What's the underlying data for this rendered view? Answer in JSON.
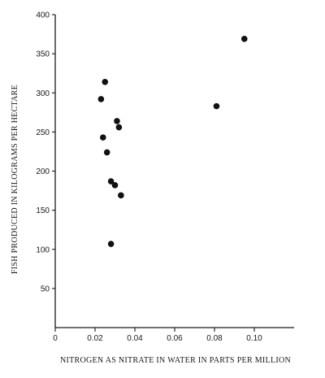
{
  "chart_data": {
    "type": "scatter",
    "title": "",
    "xlabel": "NITROGEN AS NITRATE IN WATER IN PARTS PER MILLION",
    "ylabel": "FISH PRODUCED IN KILOGRAMS PER HECTARE",
    "xlim": [
      0,
      0.12
    ],
    "ylim": [
      0,
      400
    ],
    "xticks": [
      0,
      0.02,
      0.04,
      0.06,
      0.08,
      0.1
    ],
    "xtick_labels": [
      "0",
      "0.02",
      "0.04",
      "0.06",
      "0.08",
      "0.10"
    ],
    "yticks": [
      50,
      100,
      150,
      200,
      250,
      300,
      350,
      400
    ],
    "ytick_labels": [
      "50",
      "100",
      "150",
      "200",
      "250",
      "300",
      "350",
      "400"
    ],
    "grid": false,
    "series": [
      {
        "points": [
          {
            "x": 0.095,
            "y": 369
          },
          {
            "x": 0.081,
            "y": 283
          },
          {
            "x": 0.025,
            "y": 314
          },
          {
            "x": 0.023,
            "y": 292
          },
          {
            "x": 0.031,
            "y": 264
          },
          {
            "x": 0.032,
            "y": 256
          },
          {
            "x": 0.024,
            "y": 243
          },
          {
            "x": 0.026,
            "y": 224
          },
          {
            "x": 0.028,
            "y": 187
          },
          {
            "x": 0.03,
            "y": 182
          },
          {
            "x": 0.033,
            "y": 169
          },
          {
            "x": 0.028,
            "y": 107
          }
        ]
      }
    ],
    "colors": {
      "marker": "#111111",
      "axis": "#1a1a1a"
    }
  }
}
